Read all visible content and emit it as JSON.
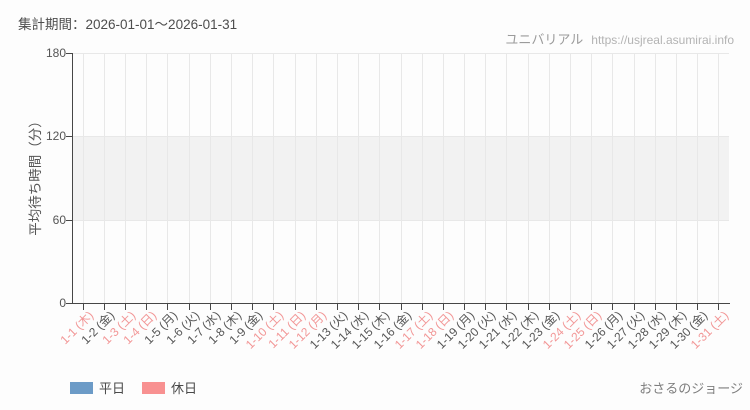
{
  "header": {
    "title": "集計期間：2026-01-01～2026-01-31",
    "brand": "ユニバリアル",
    "url": "https://usjreal.asumirai.info"
  },
  "footer": {
    "credit": "おさるのジョージ"
  },
  "chart_data": {
    "type": "bar",
    "title": "集計期間：2026-01-01～2026-01-31",
    "xlabel": "",
    "ylabel": "平均待ち時間（分）",
    "ylim": [
      0,
      180
    ],
    "yticks": [
      0,
      60,
      120,
      180
    ],
    "grid": true,
    "legend_position": "bottom-left",
    "highlight_band": {
      "from": 60,
      "to": 120,
      "color": "#f2f2f2"
    },
    "categories": [
      {
        "label": "1-1 (木)",
        "holiday": true
      },
      {
        "label": "1-2 (金)",
        "holiday": false
      },
      {
        "label": "1-3 (土)",
        "holiday": true
      },
      {
        "label": "1-4 (日)",
        "holiday": true
      },
      {
        "label": "1-5 (月)",
        "holiday": false
      },
      {
        "label": "1-6 (火)",
        "holiday": false
      },
      {
        "label": "1-7 (水)",
        "holiday": false
      },
      {
        "label": "1-8 (木)",
        "holiday": false
      },
      {
        "label": "1-9 (金)",
        "holiday": false
      },
      {
        "label": "1-10 (土)",
        "holiday": true
      },
      {
        "label": "1-11 (日)",
        "holiday": true
      },
      {
        "label": "1-12 (月)",
        "holiday": true
      },
      {
        "label": "1-13 (火)",
        "holiday": false
      },
      {
        "label": "1-14 (水)",
        "holiday": false
      },
      {
        "label": "1-15 (木)",
        "holiday": false
      },
      {
        "label": "1-16 (金)",
        "holiday": false
      },
      {
        "label": "1-17 (土)",
        "holiday": true
      },
      {
        "label": "1-18 (日)",
        "holiday": true
      },
      {
        "label": "1-19 (月)",
        "holiday": false
      },
      {
        "label": "1-20 (火)",
        "holiday": false
      },
      {
        "label": "1-21 (水)",
        "holiday": false
      },
      {
        "label": "1-22 (木)",
        "holiday": false
      },
      {
        "label": "1-23 (金)",
        "holiday": false
      },
      {
        "label": "1-24 (土)",
        "holiday": true
      },
      {
        "label": "1-25 (日)",
        "holiday": true
      },
      {
        "label": "1-26 (月)",
        "holiday": false
      },
      {
        "label": "1-27 (火)",
        "holiday": false
      },
      {
        "label": "1-28 (水)",
        "holiday": false
      },
      {
        "label": "1-29 (木)",
        "holiday": false
      },
      {
        "label": "1-30 (金)",
        "holiday": false
      },
      {
        "label": "1-31 (土)",
        "holiday": true
      }
    ],
    "series": [
      {
        "name": "平日",
        "color": "#6c9bc7",
        "values": []
      },
      {
        "name": "休日",
        "color": "#f89191",
        "values": []
      }
    ],
    "colors": {
      "weekday_label": "#555555",
      "holiday_label": "#f29696",
      "axis": "#474747",
      "gridline": "#e8e8e8",
      "band": "#f2f2f2"
    }
  }
}
